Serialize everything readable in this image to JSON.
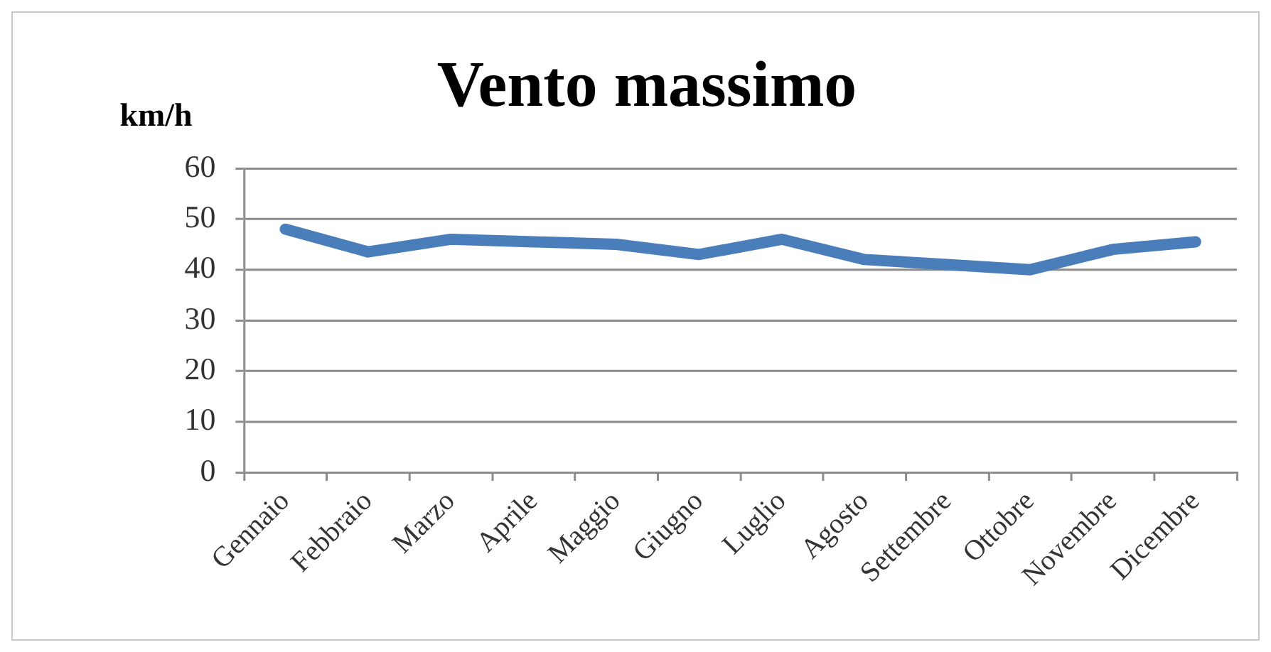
{
  "chart_data": {
    "type": "line",
    "title": "Vento massimo",
    "ylabel": "km/h",
    "categories": [
      "Gennaio",
      "Febbraio",
      "Marzo",
      "Aprile",
      "Maggio",
      "Giugno",
      "Luglio",
      "Agosto",
      "Settembre",
      "Ottobre",
      "Novembre",
      "Dicembre"
    ],
    "series": [
      {
        "color": "#4a7ebb",
        "values": [
          48,
          43.5,
          46,
          45.5,
          45,
          43,
          46,
          42,
          41,
          40,
          44,
          45.5
        ]
      }
    ],
    "ylim": [
      0,
      60
    ],
    "yticks": [
      0,
      10,
      20,
      30,
      40,
      50,
      60
    ],
    "grid": "y",
    "legend": false
  }
}
